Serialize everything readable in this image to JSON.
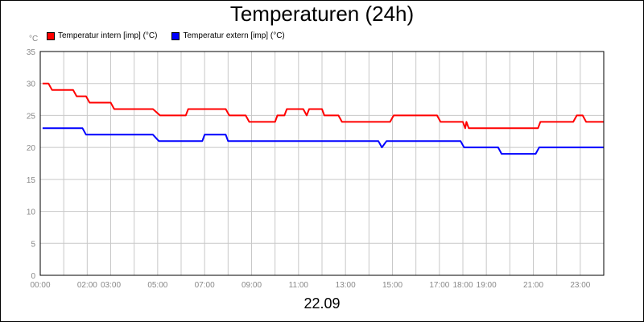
{
  "chart_data": {
    "type": "line",
    "title": "Temperaturen (24h)",
    "unit_label": "°C",
    "footer_label": "22.09",
    "xlim": [
      0,
      24
    ],
    "ylim": [
      0,
      35
    ],
    "yticks": [
      0,
      5,
      10,
      15,
      20,
      25,
      30,
      35
    ],
    "xticks": [
      {
        "h": 0,
        "label": "00:00"
      },
      {
        "h": 2,
        "label": "02:00"
      },
      {
        "h": 3,
        "label": "03:00"
      },
      {
        "h": 5,
        "label": "05:00"
      },
      {
        "h": 7,
        "label": "07:00"
      },
      {
        "h": 9,
        "label": "09:00"
      },
      {
        "h": 11,
        "label": "11:00"
      },
      {
        "h": 13,
        "label": "13:00"
      },
      {
        "h": 15,
        "label": "15:00"
      },
      {
        "h": 17,
        "label": "17:00"
      },
      {
        "h": 18,
        "label": "18:00"
      },
      {
        "h": 19,
        "label": "19:00"
      },
      {
        "h": 21,
        "label": "21:00"
      },
      {
        "h": 23,
        "label": "23:00"
      }
    ],
    "grid": true,
    "series": [
      {
        "name": "Temperatur intern [imp] (°C)",
        "color": "#ff0000",
        "points": [
          [
            0.1,
            30
          ],
          [
            0.35,
            30
          ],
          [
            0.5,
            29
          ],
          [
            1.4,
            29
          ],
          [
            1.55,
            28
          ],
          [
            1.95,
            28
          ],
          [
            2.1,
            27
          ],
          [
            3.0,
            27
          ],
          [
            3.15,
            26
          ],
          [
            4.8,
            26
          ],
          [
            5.1,
            25
          ],
          [
            6.2,
            25
          ],
          [
            6.3,
            26
          ],
          [
            7.9,
            26
          ],
          [
            8.05,
            25
          ],
          [
            8.75,
            25
          ],
          [
            8.9,
            24
          ],
          [
            10.0,
            24
          ],
          [
            10.1,
            25
          ],
          [
            10.4,
            25
          ],
          [
            10.5,
            26
          ],
          [
            11.2,
            26
          ],
          [
            11.35,
            25
          ],
          [
            11.45,
            26
          ],
          [
            12.0,
            26
          ],
          [
            12.1,
            25
          ],
          [
            12.7,
            25
          ],
          [
            12.85,
            24
          ],
          [
            14.9,
            24
          ],
          [
            15.05,
            25
          ],
          [
            16.9,
            25
          ],
          [
            17.05,
            24
          ],
          [
            18.0,
            24
          ],
          [
            18.1,
            23
          ],
          [
            18.15,
            24
          ],
          [
            18.25,
            23
          ],
          [
            21.2,
            23
          ],
          [
            21.3,
            24
          ],
          [
            22.7,
            24
          ],
          [
            22.85,
            25
          ],
          [
            23.1,
            25
          ],
          [
            23.25,
            24
          ],
          [
            24.0,
            24
          ]
        ]
      },
      {
        "name": "Temperatur extern [imp] (°C)",
        "color": "#0000ff",
        "points": [
          [
            0.1,
            23
          ],
          [
            1.8,
            23
          ],
          [
            1.95,
            22
          ],
          [
            4.8,
            22
          ],
          [
            5.05,
            21
          ],
          [
            6.9,
            21
          ],
          [
            7.0,
            22
          ],
          [
            7.9,
            22
          ],
          [
            8.0,
            21
          ],
          [
            14.4,
            21
          ],
          [
            14.55,
            20
          ],
          [
            14.75,
            21
          ],
          [
            17.9,
            21
          ],
          [
            18.05,
            20
          ],
          [
            19.5,
            20
          ],
          [
            19.65,
            19
          ],
          [
            21.1,
            19
          ],
          [
            21.25,
            20
          ],
          [
            24.0,
            20
          ]
        ]
      }
    ]
  }
}
